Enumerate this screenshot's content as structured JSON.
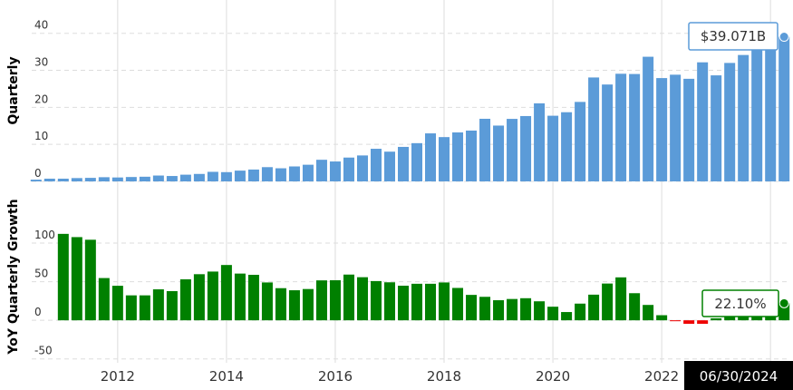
{
  "chart_data": {
    "type": "bar",
    "x": [
      2010.5,
      2010.75,
      2011,
      2011.25,
      2011.5,
      2011.75,
      2012,
      2012.25,
      2012.5,
      2012.75,
      2013,
      2013.25,
      2013.5,
      2013.75,
      2014,
      2014.25,
      2014.5,
      2014.75,
      2015,
      2015.25,
      2015.5,
      2015.75,
      2016,
      2016.25,
      2016.5,
      2016.75,
      2017,
      2017.25,
      2017.5,
      2017.75,
      2018,
      2018.25,
      2018.5,
      2018.75,
      2019,
      2019.25,
      2019.5,
      2019.75,
      2020,
      2020.25,
      2020.5,
      2020.75,
      2021,
      2021.25,
      2021.5,
      2021.75,
      2022,
      2022.25,
      2022.5,
      2022.75,
      2023,
      2023.25,
      2023.5,
      2023.75,
      2024,
      2024.25
    ],
    "xlim": [
      2010.42,
      2024.33
    ],
    "xticks": [
      2012,
      2014,
      2016,
      2018,
      2020,
      2022,
      2024
    ],
    "grid": true,
    "series": [
      {
        "name": "Quarterly",
        "color": "#5b9bd8",
        "values": [
          0.467,
          0.731,
          0.731,
          0.895,
          0.954,
          1.131,
          1.058,
          1.184,
          1.262,
          1.585,
          1.458,
          1.813,
          2.016,
          2.585,
          2.502,
          2.91,
          3.203,
          3.851,
          3.543,
          4.042,
          4.501,
          5.841,
          5.382,
          6.436,
          7.011,
          8.809,
          8.032,
          9.321,
          10.328,
          12.972,
          11.966,
          13.231,
          13.727,
          16.914,
          15.077,
          16.886,
          17.652,
          21.082,
          17.737,
          18.687,
          21.47,
          28.072,
          26.171,
          29.077,
          29.01,
          33.671,
          27.908,
          28.822,
          27.714,
          32.165,
          28.645,
          31.999,
          34.146,
          40.111,
          36.455,
          39.071
        ],
        "ylim": [
          0,
          49
        ],
        "yticks": [
          0,
          10,
          20,
          30,
          40
        ]
      },
      {
        "name": "YoY Quarterly Growth",
        "color": "#008000",
        "negative_color": "#ee0000",
        "values": [
          null,
          null,
          111.9,
          107.7,
          104.3,
          54.7,
          44.7,
          32.3,
          32.3,
          40.1,
          37.8,
          53.1,
          59.7,
          63.1,
          71.6,
          60.5,
          58.9,
          49.0,
          41.6,
          38.9,
          40.5,
          51.7,
          51.9,
          59.2,
          55.8,
          50.8,
          49.2,
          44.8,
          47.3,
          47.3,
          49.0,
          41.9,
          32.9,
          30.4,
          26.0,
          27.6,
          28.6,
          24.6,
          17.6,
          10.7,
          21.6,
          33.2,
          47.6,
          55.6,
          35.1,
          19.9,
          6.6,
          -0.9,
          -4.5,
          -4.5,
          2.6,
          11.0,
          23.2,
          24.7,
          27.3,
          22.1
        ],
        "ylim": [
          -55,
          154
        ],
        "yticks": [
          -50,
          0,
          50,
          100
        ]
      }
    ],
    "tooltip": {
      "date": "06/30/2024",
      "value_label": "$39.071B",
      "growth_label": "22.10%"
    }
  }
}
